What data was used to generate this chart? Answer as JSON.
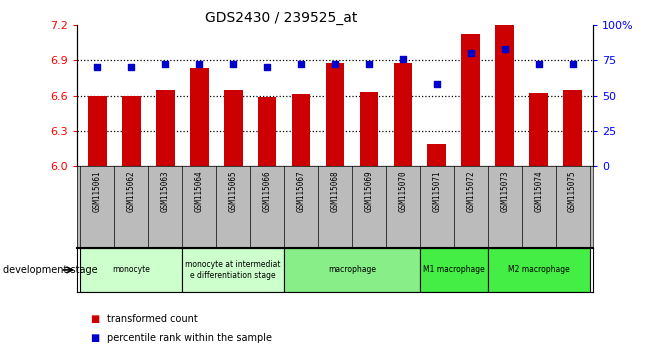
{
  "title": "GDS2430 / 239525_at",
  "samples": [
    "GSM115061",
    "GSM115062",
    "GSM115063",
    "GSM115064",
    "GSM115065",
    "GSM115066",
    "GSM115067",
    "GSM115068",
    "GSM115069",
    "GSM115070",
    "GSM115071",
    "GSM115072",
    "GSM115073",
    "GSM115074",
    "GSM115075"
  ],
  "bar_values": [
    6.6,
    6.6,
    6.65,
    6.83,
    6.65,
    6.59,
    6.61,
    6.88,
    6.63,
    6.88,
    6.19,
    7.12,
    7.2,
    6.62,
    6.65
  ],
  "percentile_values": [
    70,
    70,
    72,
    72,
    72,
    70,
    72,
    72,
    72,
    76,
    58,
    80,
    83,
    72,
    72
  ],
  "ylim_left": [
    6.0,
    7.2
  ],
  "ylim_right": [
    0,
    100
  ],
  "yticks_left": [
    6.0,
    6.3,
    6.6,
    6.9,
    7.2
  ],
  "yticks_right": [
    0,
    25,
    50,
    75,
    100
  ],
  "bar_color": "#cc0000",
  "percentile_color": "#0000cc",
  "grid_values": [
    6.3,
    6.6,
    6.9
  ],
  "stage_groups": [
    {
      "label": "monocyte",
      "start": 0,
      "end": 2,
      "color": "#ccffcc"
    },
    {
      "label": "monocyte at intermediat\ne differentiation stage",
      "start": 3,
      "end": 5,
      "color": "#ccffcc"
    },
    {
      "label": "macrophage",
      "start": 6,
      "end": 9,
      "color": "#88ee88"
    },
    {
      "label": "M1 macrophage",
      "start": 10,
      "end": 11,
      "color": "#44ee44"
    },
    {
      "label": "M2 macrophage",
      "start": 12,
      "end": 14,
      "color": "#44ee44"
    }
  ],
  "legend_items": [
    {
      "label": "transformed count",
      "color": "#cc0000"
    },
    {
      "label": "percentile rank within the sample",
      "color": "#0000cc"
    }
  ],
  "ticklabel_bg_color": "#bbbbbb",
  "plot_bg_color": "#ffffff",
  "spine_color": "#000000"
}
